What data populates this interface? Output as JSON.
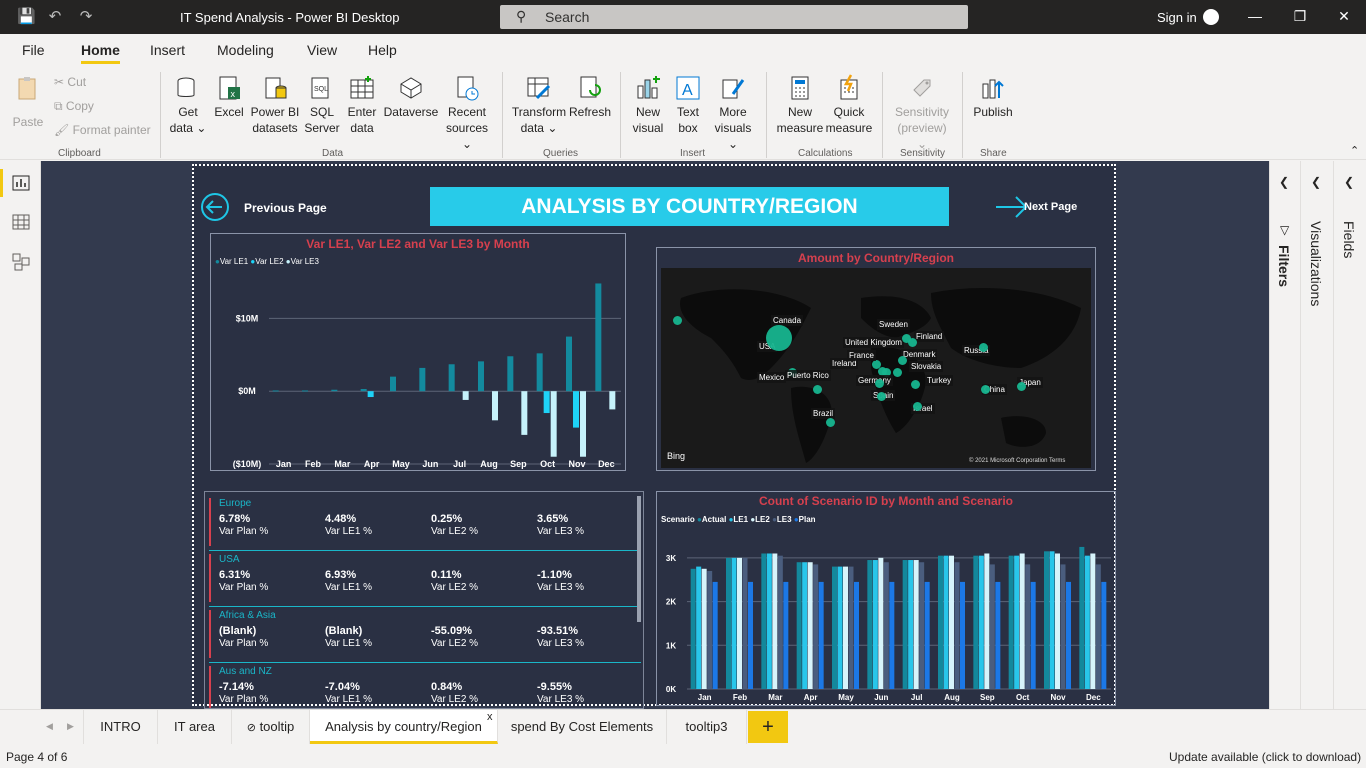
{
  "window": {
    "title": "IT Spend Analysis - Power BI Desktop",
    "search_placeholder": "Search",
    "sign_in": "Sign in"
  },
  "menu": [
    "File",
    "Home",
    "Insert",
    "Modeling",
    "View",
    "Help"
  ],
  "ribbon": {
    "clipboard": {
      "paste": "Paste",
      "cut": "Cut",
      "copy": "Copy",
      "format_painter": "Format painter",
      "group": "Clipboard"
    },
    "data": {
      "get_data": [
        "Get",
        "data ⌄"
      ],
      "excel": "Excel",
      "pbi_datasets": [
        "Power BI",
        "datasets"
      ],
      "sql": [
        "SQL",
        "Server"
      ],
      "enter_data": [
        "Enter",
        "data"
      ],
      "dataverse": "Dataverse",
      "recent": [
        "Recent",
        "sources ⌄"
      ],
      "group": "Data"
    },
    "queries": {
      "transform": [
        "Transform",
        "data ⌄"
      ],
      "refresh": "Refresh",
      "group": "Queries"
    },
    "insert": {
      "new_visual": [
        "New",
        "visual"
      ],
      "text_box": [
        "Text",
        "box"
      ],
      "more_visuals": [
        "More",
        "visuals ⌄"
      ],
      "group": "Insert"
    },
    "calculations": {
      "new_measure": [
        "New",
        "measure"
      ],
      "quick_measure": [
        "Quick",
        "measure"
      ],
      "group": "Calculations"
    },
    "sensitivity": {
      "label": [
        "Sensitivity",
        "(preview) ⌄"
      ],
      "group": "Sensitivity"
    },
    "share": {
      "publish": "Publish",
      "group": "Share"
    }
  },
  "panes": {
    "filters": "Filters",
    "visualizations": "Visualizations",
    "fields": "Fields"
  },
  "report": {
    "prev": "Previous Page",
    "next": "Next Page",
    "header": "ANALYSIS BY COUNTRY/REGION",
    "chart1": {
      "title": "Var LE1, Var LE2 and Var LE3 by Month",
      "legend": [
        "Var LE1",
        "Var LE2",
        "Var LE3"
      ],
      "yticks": [
        "$10M",
        "$0M",
        "($10M)"
      ]
    },
    "map": {
      "title": "Amount by Country/Region",
      "bing": "Bing",
      "copyright": "© 2021 Microsoft Corporation  Terms",
      "labels": [
        "Canada",
        "USA",
        "Mexico",
        "Puerto Rico",
        "Brazil",
        "Ireland",
        "United Kingdom",
        "Sweden",
        "Finland",
        "France",
        "Denmark",
        "Slovakia",
        "Germany",
        "Spain",
        "Turkey",
        "Israel",
        "Russia",
        "China",
        "Japan"
      ]
    },
    "kpis": [
      {
        "region": "Europe",
        "values": [
          "6.78%",
          "4.48%",
          "0.25%",
          "3.65%"
        ]
      },
      {
        "region": "USA",
        "values": [
          "6.31%",
          "6.93%",
          "0.11%",
          "-1.10%"
        ]
      },
      {
        "region": "Africa & Asia",
        "values": [
          "(Blank)",
          "(Blank)",
          "-55.09%",
          "-93.51%"
        ]
      },
      {
        "region": "Aus and NZ",
        "values": [
          "-7.14%",
          "-7.04%",
          "0.84%",
          "-9.55%"
        ]
      }
    ],
    "kpi_labels": [
      "Var Plan %",
      "Var LE1 %",
      "Var LE2 %",
      "Var LE3 %"
    ],
    "chart2": {
      "title": "Count of Scenario ID by Month and Scenario",
      "legend_title": "Scenario",
      "legend": [
        "Actual",
        "LE1",
        "LE2",
        "LE3",
        "Plan"
      ],
      "yticks": [
        "3K",
        "2K",
        "1K",
        "0K"
      ]
    }
  },
  "colors": {
    "le1": "#138a9e",
    "le2": "#1ed3f7",
    "le3": "#c6f2fb",
    "actual": "#13889c",
    "le1b": "#28c6ea",
    "le2b": "#d7f4fb",
    "le3b": "#4a5d7e",
    "plan": "#1c78e6"
  },
  "chart_data": [
    {
      "type": "bar",
      "title": "Var LE1, Var LE2 and Var LE3 by Month",
      "categories": [
        "Jan",
        "Feb",
        "Mar",
        "Apr",
        "May",
        "Jun",
        "Jul",
        "Aug",
        "Sep",
        "Oct",
        "Nov",
        "Dec"
      ],
      "series": [
        {
          "name": "Var LE1",
          "values": [
            0.1,
            0.1,
            0.2,
            0.3,
            2.0,
            3.2,
            3.7,
            4.1,
            4.8,
            5.2,
            7.5,
            14.8
          ]
        },
        {
          "name": "Var LE2",
          "values": [
            0,
            0,
            0,
            -0.8,
            0,
            0,
            0,
            0,
            0,
            -3.0,
            -5.0,
            0
          ]
        },
        {
          "name": "Var LE3",
          "values": [
            0,
            0,
            0,
            0,
            0,
            0,
            -1.2,
            -4.0,
            -6.0,
            -9.0,
            -9.0,
            -2.5
          ]
        }
      ],
      "ylabel": "",
      "ylim": [
        -10,
        15
      ]
    },
    {
      "type": "bar",
      "title": "Count of Scenario ID by Month and Scenario",
      "categories": [
        "Jan",
        "Feb",
        "Mar",
        "Apr",
        "May",
        "Jun",
        "Jul",
        "Aug",
        "Sep",
        "Oct",
        "Nov",
        "Dec"
      ],
      "series": [
        {
          "name": "Actual",
          "values": [
            2750,
            3000,
            3100,
            2900,
            2800,
            2950,
            2950,
            3050,
            3050,
            3050,
            3150,
            3250
          ]
        },
        {
          "name": "LE1",
          "values": [
            2800,
            3000,
            3100,
            2900,
            2800,
            2950,
            2950,
            3050,
            3050,
            3050,
            3150,
            3050
          ]
        },
        {
          "name": "LE2",
          "values": [
            2750,
            3000,
            3100,
            2900,
            2800,
            3000,
            2950,
            3050,
            3100,
            3100,
            3100,
            3100
          ]
        },
        {
          "name": "LE3",
          "values": [
            2700,
            3000,
            3050,
            2850,
            2800,
            2900,
            2900,
            2900,
            2850,
            2850,
            2850,
            2850
          ]
        },
        {
          "name": "Plan",
          "values": [
            2450,
            2450,
            2450,
            2450,
            2450,
            2450,
            2450,
            2450,
            2450,
            2450,
            2450,
            2450
          ]
        }
      ],
      "ylim": [
        0,
        3500
      ]
    }
  ],
  "tabs": [
    "INTRO",
    "IT area",
    "tooltip",
    "Analysis by country/Region",
    "spend By Cost Elements",
    "tooltip3"
  ],
  "status": {
    "page": "Page 4 of 6",
    "update": "Update available (click to download)"
  }
}
